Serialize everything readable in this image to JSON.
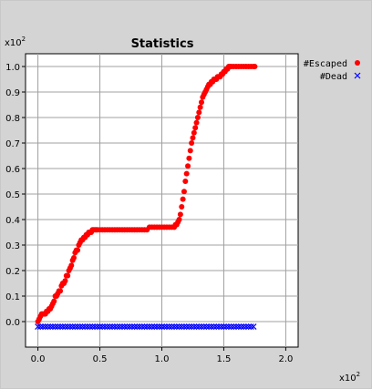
{
  "chart_data": {
    "type": "scatter",
    "title": "Statistics",
    "xlabel": "",
    "ylabel": "",
    "x_scale_label": "x10",
    "x_scale_exp": "2",
    "y_scale_label": "x10",
    "y_scale_exp": "2",
    "xlim": [
      -0.1,
      2.1
    ],
    "ylim": [
      -0.1,
      1.05
    ],
    "xticks": [
      "0.0",
      "0.5",
      "1.0",
      "1.5",
      "2.0"
    ],
    "yticks": [
      "0.0",
      "0.1",
      "0.2",
      "0.3",
      "0.4",
      "0.5",
      "0.6",
      "0.7",
      "0.8",
      "0.9",
      "1.0"
    ],
    "grid": true,
    "legend_position": "right",
    "series": [
      {
        "name": "#Escaped",
        "marker": "circle",
        "color": "#ff0000",
        "x": [
          0.0,
          0.01,
          0.02,
          0.03,
          0.04,
          0.05,
          0.06,
          0.07,
          0.08,
          0.09,
          0.1,
          0.11,
          0.12,
          0.13,
          0.14,
          0.15,
          0.16,
          0.17,
          0.18,
          0.19,
          0.2,
          0.21,
          0.22,
          0.23,
          0.24,
          0.25,
          0.26,
          0.27,
          0.28,
          0.29,
          0.3,
          0.31,
          0.32,
          0.33,
          0.34,
          0.35,
          0.36,
          0.37,
          0.38,
          0.39,
          0.4,
          0.41,
          0.42,
          0.43,
          0.44,
          0.45,
          0.46,
          0.47,
          0.48,
          0.5,
          0.52,
          0.54,
          0.56,
          0.58,
          0.6,
          0.62,
          0.64,
          0.66,
          0.68,
          0.7,
          0.72,
          0.74,
          0.76,
          0.78,
          0.8,
          0.82,
          0.84,
          0.86,
          0.88,
          0.9,
          0.92,
          0.94,
          0.96,
          0.98,
          1.0,
          1.02,
          1.04,
          1.06,
          1.08,
          1.1,
          1.11,
          1.12,
          1.13,
          1.14,
          1.15,
          1.16,
          1.17,
          1.18,
          1.19,
          1.2,
          1.21,
          1.22,
          1.23,
          1.24,
          1.25,
          1.26,
          1.27,
          1.28,
          1.29,
          1.3,
          1.31,
          1.32,
          1.33,
          1.34,
          1.35,
          1.36,
          1.37,
          1.38,
          1.39,
          1.4,
          1.41,
          1.42,
          1.43,
          1.44,
          1.45,
          1.46,
          1.47,
          1.48,
          1.49,
          1.5,
          1.51,
          1.52,
          1.53,
          1.54,
          1.55,
          1.56,
          1.58,
          1.6,
          1.62,
          1.64,
          1.66,
          1.68,
          1.7,
          1.72,
          1.74,
          1.75
        ],
        "y": [
          0.0,
          0.01,
          0.02,
          0.03,
          0.03,
          0.03,
          0.03,
          0.04,
          0.04,
          0.05,
          0.05,
          0.06,
          0.07,
          0.08,
          0.1,
          0.1,
          0.11,
          0.12,
          0.12,
          0.14,
          0.15,
          0.15,
          0.16,
          0.18,
          0.18,
          0.2,
          0.21,
          0.22,
          0.24,
          0.25,
          0.27,
          0.28,
          0.28,
          0.3,
          0.31,
          0.32,
          0.32,
          0.33,
          0.33,
          0.34,
          0.34,
          0.35,
          0.35,
          0.35,
          0.36,
          0.36,
          0.36,
          0.36,
          0.36,
          0.36,
          0.36,
          0.36,
          0.36,
          0.36,
          0.36,
          0.36,
          0.36,
          0.36,
          0.36,
          0.36,
          0.36,
          0.36,
          0.36,
          0.36,
          0.36,
          0.36,
          0.36,
          0.36,
          0.36,
          0.37,
          0.37,
          0.37,
          0.37,
          0.37,
          0.37,
          0.37,
          0.37,
          0.37,
          0.37,
          0.37,
          0.38,
          0.38,
          0.39,
          0.4,
          0.42,
          0.45,
          0.48,
          0.51,
          0.55,
          0.58,
          0.61,
          0.64,
          0.67,
          0.7,
          0.72,
          0.74,
          0.76,
          0.78,
          0.8,
          0.82,
          0.84,
          0.86,
          0.88,
          0.89,
          0.9,
          0.91,
          0.92,
          0.93,
          0.93,
          0.94,
          0.94,
          0.95,
          0.95,
          0.95,
          0.96,
          0.96,
          0.96,
          0.97,
          0.97,
          0.98,
          0.98,
          0.99,
          0.99,
          1.0,
          1.0,
          1.0,
          1.0,
          1.0,
          1.0,
          1.0,
          1.0,
          1.0,
          1.0,
          1.0,
          1.0,
          1.0
        ]
      },
      {
        "name": "#Dead",
        "marker": "x",
        "color": "#0000ff",
        "x_start": 0.0,
        "x_end": 1.75,
        "x_step": 0.02,
        "y_constant": -0.02
      }
    ]
  }
}
